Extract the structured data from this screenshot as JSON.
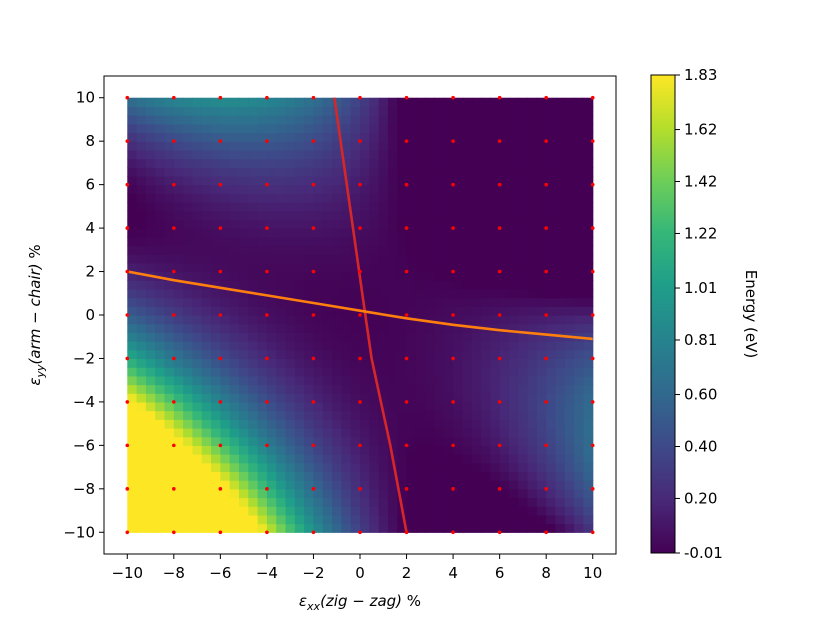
{
  "chart_data": {
    "type": "heatmap",
    "title": "",
    "xlabel": "εxx(zig − zag) %",
    "xlabel_parts": {
      "main": "ε",
      "sub": "xx",
      "italic": "(zig − zag)",
      "unit": " %"
    },
    "ylabel": "εyy(arm − chair) %",
    "ylabel_parts": {
      "main": "ε",
      "sub": "yy",
      "italic": "(arm − chair)",
      "unit": " %"
    },
    "xlim": [
      -11,
      11
    ],
    "ylim": [
      -11,
      11
    ],
    "x_ticks": [
      -10,
      -8,
      -6,
      -4,
      -2,
      0,
      2,
      4,
      6,
      8,
      10
    ],
    "y_ticks": [
      -10,
      -8,
      -6,
      -4,
      -2,
      0,
      2,
      4,
      6,
      8,
      10
    ],
    "x_tick_labels": [
      "−10",
      "−8",
      "−6",
      "−4",
      "−2",
      "0",
      "2",
      "4",
      "6",
      "8",
      "10"
    ],
    "y_tick_labels": [
      "−10",
      "−8",
      "−6",
      "−4",
      "−2",
      "0",
      "2",
      "4",
      "6",
      "8",
      "10"
    ],
    "grid": false,
    "colormap": "viridis",
    "colorbar": {
      "label": "Energy (eV)",
      "range": [
        -0.01,
        1.83
      ],
      "ticks": [
        1.83,
        1.62,
        1.42,
        1.22,
        1.01,
        0.81,
        0.6,
        0.4,
        0.2,
        -0.01
      ],
      "tick_labels": [
        "1.83",
        "1.62",
        "1.42",
        "1.22",
        "1.01",
        "0.81",
        "0.60",
        "0.40",
        "0.20",
        "-0.01"
      ]
    },
    "field_domain": {
      "x": [
        -10,
        10
      ],
      "y": [
        -10,
        10
      ]
    },
    "sample_points": {
      "x": [
        -10,
        -8,
        -6,
        -4,
        -2,
        0,
        2,
        4,
        6,
        8,
        10
      ],
      "y": [
        -10,
        -8,
        -6,
        -4,
        -2,
        0,
        2,
        4,
        6,
        8,
        10
      ],
      "color": "#ff0000"
    },
    "series": [
      {
        "color": "#d62728",
        "x": [
          -1.1,
          -0.7,
          -0.3,
          0.2,
          0.5,
          0.9,
          1.3,
          1.65,
          2.0
        ],
        "y": [
          10,
          7,
          4,
          0.2,
          -2,
          -4,
          -6,
          -8,
          -10
        ]
      },
      {
        "color": "#ff7f0e",
        "x": [
          -10,
          -8,
          -6,
          -4,
          -2,
          0,
          2,
          4,
          6,
          8,
          10
        ],
        "y": [
          2.0,
          1.6,
          1.25,
          0.9,
          0.55,
          0.2,
          -0.15,
          -0.45,
          -0.7,
          -0.9,
          -1.1
        ]
      }
    ]
  }
}
